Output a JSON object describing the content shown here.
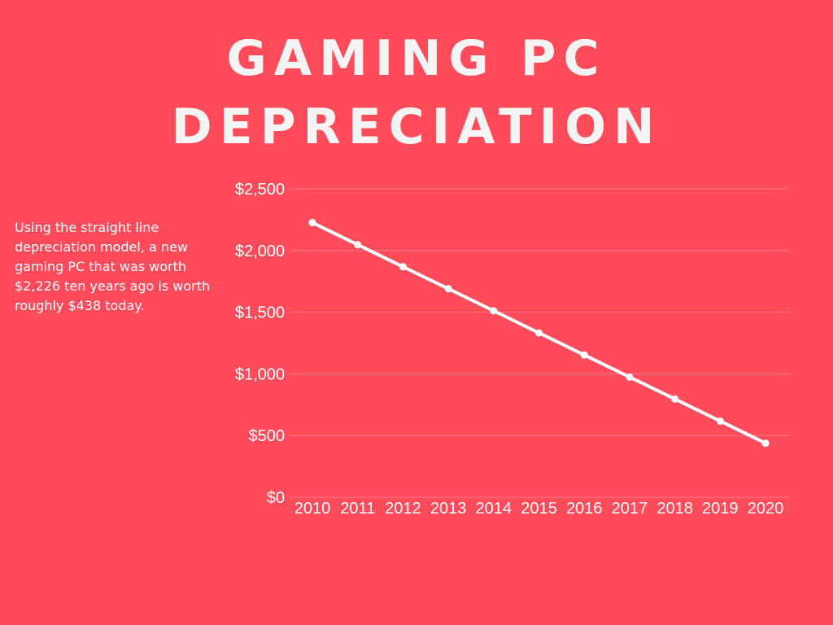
{
  "title": {
    "line1": "GAMING PC",
    "line2": "DEPRECIATION"
  },
  "description": "Using the straight line depreciation model, a new gaming PC that was worth $2,226 ten years ago is worth roughly $438 today.",
  "colors": {
    "background": "#FF4B5A",
    "line": "#FFFFFF",
    "grid": "#FF7A85",
    "text": "#FFFFFF"
  },
  "chart_data": {
    "type": "line",
    "title": "GAMING PC DEPRECIATION",
    "xlabel": "",
    "ylabel": "",
    "categories": [
      "2010",
      "2011",
      "2012",
      "2013",
      "2014",
      "2015",
      "2016",
      "2017",
      "2018",
      "2019",
      "2020"
    ],
    "series": [
      {
        "values": [
          2226,
          2047,
          1868,
          1690,
          1511,
          1332,
          1153,
          974,
          796,
          617,
          438
        ]
      }
    ],
    "ylim": [
      0,
      2500
    ],
    "yticks": [
      0,
      500,
      1000,
      1500,
      2000,
      2500
    ],
    "ytick_labels": [
      "$0",
      "$500",
      "$1,000",
      "$1,500",
      "$2,000",
      "$2,500"
    ],
    "grid": true,
    "legend": "none"
  }
}
